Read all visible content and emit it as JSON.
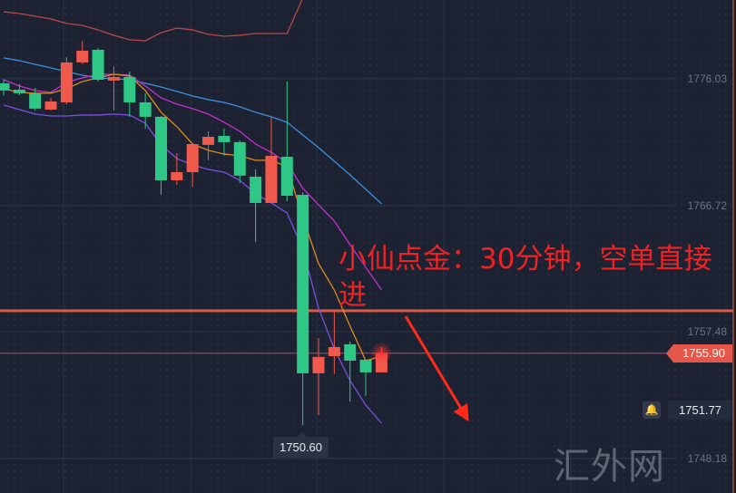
{
  "chart_data": {
    "type": "candlestick",
    "title": "",
    "ylim": [
      1745.64,
      1781.81
    ],
    "grid": true,
    "y_ticks": [
      "1776.03",
      "1766.72",
      "1757.48",
      "1748.18"
    ],
    "colors": {
      "up": "#ef5a4c",
      "down": "#2fc785",
      "background": "#1c2232"
    },
    "candles": [
      {
        "o": 1775.7,
        "h": 1776.0,
        "l": 1774.8,
        "c": 1775.17
      },
      {
        "o": 1775.23,
        "h": 1775.63,
        "l": 1774.83,
        "c": 1774.97
      },
      {
        "o": 1774.97,
        "h": 1775.36,
        "l": 1773.7,
        "c": 1773.84
      },
      {
        "o": 1773.77,
        "h": 1774.63,
        "l": 1773.7,
        "c": 1774.37
      },
      {
        "o": 1774.3,
        "h": 1777.63,
        "l": 1774.17,
        "c": 1777.23
      },
      {
        "o": 1777.23,
        "h": 1778.82,
        "l": 1777.1,
        "c": 1778.09
      },
      {
        "o": 1778.16,
        "h": 1778.29,
        "l": 1775.83,
        "c": 1775.96
      },
      {
        "o": 1775.9,
        "h": 1776.96,
        "l": 1773.7,
        "c": 1776.16
      },
      {
        "o": 1776.16,
        "h": 1776.56,
        "l": 1773.24,
        "c": 1774.3
      },
      {
        "o": 1774.3,
        "h": 1774.97,
        "l": 1772.37,
        "c": 1773.24
      },
      {
        "o": 1773.24,
        "h": 1773.3,
        "l": 1767.52,
        "c": 1768.58
      },
      {
        "o": 1768.58,
        "h": 1770.58,
        "l": 1768.25,
        "c": 1769.18
      },
      {
        "o": 1769.18,
        "h": 1771.3,
        "l": 1768.12,
        "c": 1771.24
      },
      {
        "o": 1771.18,
        "h": 1772.17,
        "l": 1770.05,
        "c": 1771.77
      },
      {
        "o": 1771.84,
        "h": 1772.37,
        "l": 1770.38,
        "c": 1771.38
      },
      {
        "o": 1771.38,
        "h": 1771.5,
        "l": 1768.38,
        "c": 1768.92
      },
      {
        "o": 1768.85,
        "h": 1769.38,
        "l": 1764.06,
        "c": 1766.92
      },
      {
        "o": 1766.92,
        "h": 1773.17,
        "l": 1766.92,
        "c": 1770.38
      },
      {
        "o": 1770.31,
        "h": 1775.83,
        "l": 1767.05,
        "c": 1767.45
      },
      {
        "o": 1767.52,
        "h": 1767.72,
        "l": 1750.6,
        "c": 1754.42
      },
      {
        "o": 1754.42,
        "h": 1757.01,
        "l": 1751.36,
        "c": 1755.62
      },
      {
        "o": 1755.68,
        "h": 1758.94,
        "l": 1754.36,
        "c": 1756.35
      },
      {
        "o": 1756.55,
        "h": 1756.75,
        "l": 1752.36,
        "c": 1755.35
      },
      {
        "o": 1755.42,
        "h": 1755.42,
        "l": 1752.76,
        "c": 1754.49
      },
      {
        "o": 1754.49,
        "h": 1756.35,
        "l": 1754.49,
        "c": 1755.9
      }
    ],
    "lines": [
      {
        "color": "#3d8fe0",
        "values": [
          1777.56,
          1777.36,
          1777.09,
          1776.83,
          1776.56,
          1776.29,
          1776.1,
          1776.03,
          1775.96,
          1775.7,
          1775.43,
          1775.1,
          1774.77,
          1774.5,
          1774.3,
          1773.97,
          1773.57,
          1773.24,
          1772.84,
          1771.91,
          1770.98,
          1769.98,
          1768.98,
          1767.92,
          1766.86
        ]
      },
      {
        "color": "#c62fd0",
        "values": [
          1775.96,
          1775.5,
          1775.17,
          1775.03,
          1775.76,
          1776.1,
          1776.36,
          1776.36,
          1776.3,
          1775.5,
          1774.63,
          1774.17,
          1773.84,
          1773.44,
          1772.84,
          1772.17,
          1771.24,
          1770.64,
          1769.85,
          1767.99,
          1766.79,
          1765.59,
          1763.86,
          1762.2,
          1760.54
        ]
      },
      {
        "color": "#7c4fe0",
        "values": [
          1774.1,
          1773.77,
          1773.44,
          1773.3,
          1773.3,
          1773.37,
          1773.37,
          1773.44,
          1773.37,
          1772.77,
          1771.18,
          1770.18,
          1769.71,
          1769.38,
          1769.18,
          1768.58,
          1767.59,
          1766.92,
          1766.19,
          1763.53,
          1759.21,
          1756.22,
          1753.89,
          1752.09,
          1750.76
        ]
      },
      {
        "color": "#e08a1e",
        "values": [
          1775.3,
          1775.03,
          1774.97,
          1774.97,
          1775.3,
          1775.83,
          1776.1,
          1776.36,
          1776.23,
          1775.17,
          1773.57,
          1772.51,
          1771.24,
          1770.78,
          1770.51,
          1770.38,
          1770.05,
          1770.05,
          1769.58,
          1765.86,
          1762.47,
          1760.54,
          1757.88,
          1755.35,
          1755.68
        ]
      },
      {
        "color": "#b8474a",
        "values": [
          1780.95,
          1780.82,
          1780.62,
          1780.42,
          1780.09,
          1779.95,
          1779.62,
          1779.22,
          1778.89,
          1778.82,
          1779.42,
          1779.75,
          1779.62,
          1779.29,
          1779.15,
          1779.22,
          1779.35,
          1779.35,
          1779.35,
          1781.95
        ]
      }
    ],
    "horizontal_levels": [
      {
        "price": 1759.01,
        "color": "#e4573c",
        "style": "thick"
      },
      {
        "price": 1755.9,
        "color": "#c0494a",
        "style": "thin"
      }
    ],
    "current_price": "1755.90",
    "alert_price": "1751.77",
    "low_label": "1750.60",
    "annotation": "小仙点金：30分钟，空单直接进",
    "arrow": {
      "from_price": 1758.6,
      "to_price": 1751.4,
      "direction": "down",
      "color": "#ff2a1a"
    },
    "watermark": "汇外网"
  }
}
